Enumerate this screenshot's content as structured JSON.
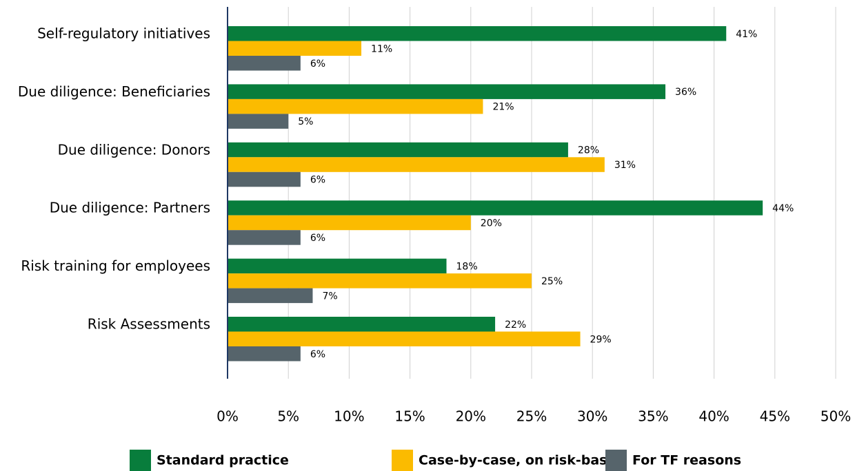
{
  "chart_data": {
    "type": "hbar",
    "categories": [
      "Self-regulatory initiatives",
      "Due diligence: Beneficiaries",
      "Due diligence: Donors",
      "Due diligence: Partners",
      "Risk training for employees",
      "Risk Assessments"
    ],
    "series": [
      {
        "name": "Standard practice",
        "color": "#087d3c",
        "values": [
          41,
          36,
          28,
          44,
          18,
          22
        ],
        "value_labels": [
          "41%",
          "36%",
          "28%",
          "44%",
          "18%",
          "22%"
        ]
      },
      {
        "name": "Case-by-case, on risk-basis",
        "color": "#fbbb00",
        "values": [
          11,
          21,
          31,
          20,
          25,
          29
        ],
        "value_labels": [
          "11%",
          "21%",
          "31%",
          "20%",
          "25%",
          "29%"
        ]
      },
      {
        "name": "For TF reasons",
        "color": "#56646b",
        "values": [
          6,
          5,
          6,
          6,
          7,
          6
        ],
        "value_labels": [
          "6%",
          "5%",
          "6%",
          "6%",
          "7%",
          "6%"
        ]
      }
    ],
    "xlim": [
      0,
      50
    ],
    "xticks": [
      {
        "value": 0,
        "label": "0%"
      },
      {
        "value": 5,
        "label": "5%"
      },
      {
        "value": 10,
        "label": "10%"
      },
      {
        "value": 15,
        "label": "15%"
      },
      {
        "value": 20,
        "label": "20%"
      },
      {
        "value": 25,
        "label": "25%"
      },
      {
        "value": 30,
        "label": "30%"
      },
      {
        "value": 35,
        "label": "35%"
      },
      {
        "value": 40,
        "label": "40%"
      },
      {
        "value": 45,
        "label": "45%"
      },
      {
        "value": 50,
        "label": "50%"
      }
    ],
    "grid": true,
    "legend": "bottom"
  }
}
